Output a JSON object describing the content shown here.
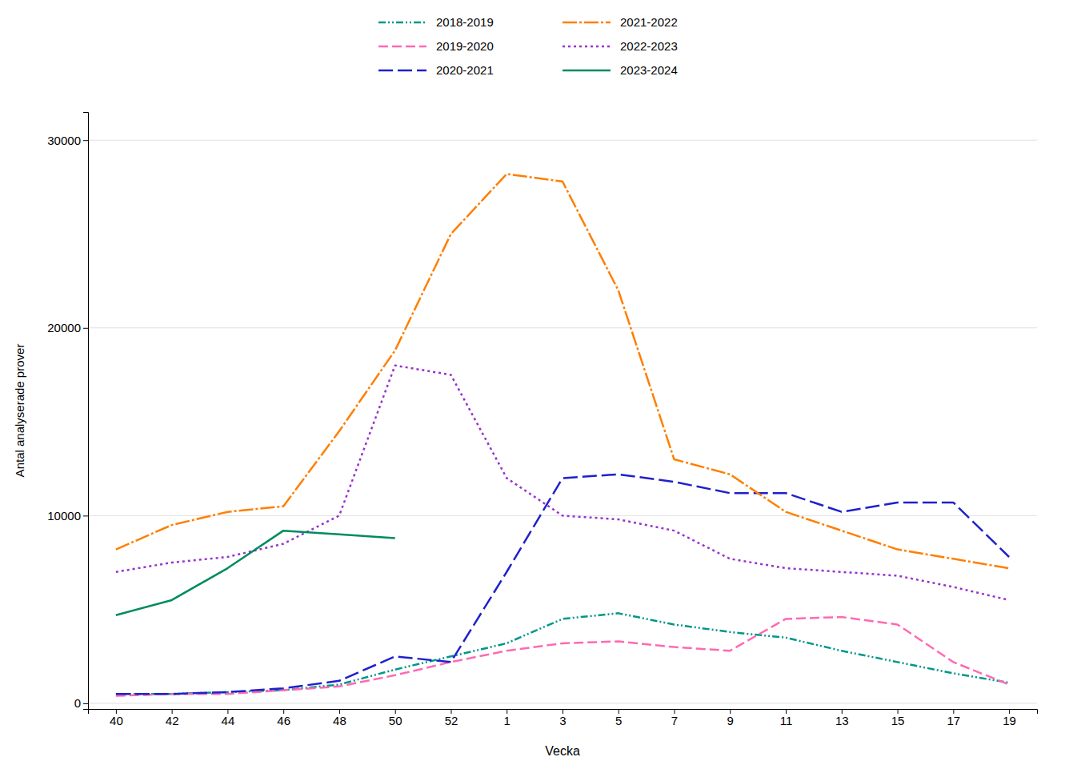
{
  "chart_data": {
    "type": "line",
    "xlabel": "Vecka",
    "ylabel": "Antal analyserade prover",
    "categories": [
      "40",
      "42",
      "44",
      "46",
      "48",
      "50",
      "52",
      "1",
      "3",
      "5",
      "7",
      "9",
      "11",
      "13",
      "15",
      "17",
      "19"
    ],
    "ylim": [
      -300,
      31500
    ],
    "yticks": [
      0,
      10000,
      20000,
      30000
    ],
    "grid": true,
    "legend": "top",
    "series": [
      {
        "name": "2018-2019",
        "color": "#00968A",
        "line_style": "dashdotdot",
        "values": [
          500,
          500,
          600,
          700,
          1000,
          1800,
          2500,
          3200,
          4500,
          4800,
          4200,
          3800,
          3500,
          2800,
          2200,
          1600,
          1100
        ]
      },
      {
        "name": "2019-2020",
        "color": "#FF69B4",
        "line_style": "dashed",
        "values": [
          400,
          500,
          500,
          700,
          900,
          1500,
          2200,
          2800,
          3200,
          3300,
          3000,
          2800,
          4500,
          4600,
          4200,
          2200,
          1000
        ]
      },
      {
        "name": "2020-2021",
        "color": "#2020CC",
        "line_style": "longdash",
        "values": [
          500,
          500,
          600,
          800,
          1200,
          2500,
          2200,
          7000,
          12000,
          12200,
          11800,
          11200,
          11200,
          10200,
          10700,
          10700,
          7800
        ]
      },
      {
        "name": "2021-2022",
        "color": "#FF7F00",
        "line_style": "dashdot",
        "values": [
          8200,
          9500,
          10200,
          10500,
          14500,
          18800,
          25000,
          28200,
          27800,
          22000,
          13000,
          12200,
          10200,
          9200,
          8200,
          7700,
          7200
        ]
      },
      {
        "name": "2022-2023",
        "color": "#9932CC",
        "line_style": "dotted",
        "values": [
          7000,
          7500,
          7800,
          8500,
          10000,
          18000,
          17500,
          12000,
          10000,
          9800,
          9200,
          7700,
          7200,
          7000,
          6800,
          6200,
          5500
        ]
      },
      {
        "name": "2023-2024",
        "color": "#008B60",
        "line_style": "solid",
        "values": [
          4700,
          5500,
          7200,
          9200,
          9000,
          8800,
          null,
          null,
          null,
          null,
          null,
          null,
          null,
          null,
          null,
          null,
          null
        ]
      }
    ]
  }
}
